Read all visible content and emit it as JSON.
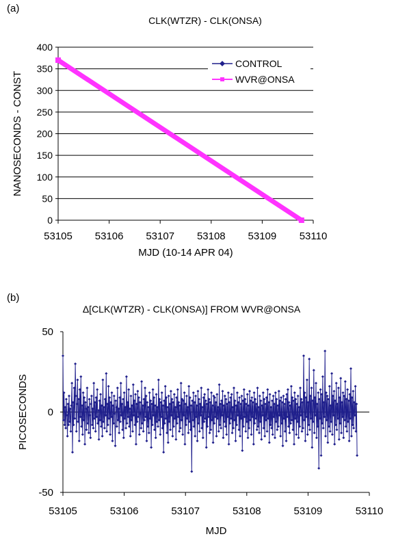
{
  "chart_data": [
    {
      "panel": "(a)",
      "type": "line",
      "title": "CLK(WTZR) - CLK(ONSA)",
      "xlabel": "MJD (10-14 APR 04)",
      "ylabel": "NANOSECONDS - CONST",
      "xlim": [
        53105,
        53110
      ],
      "ylim": [
        0,
        400
      ],
      "x_ticks": [
        "53105",
        "53106",
        "53107",
        "53108",
        "53109",
        "53110"
      ],
      "y_ticks": [
        "0",
        "50",
        "100",
        "150",
        "200",
        "250",
        "300",
        "350",
        "400"
      ],
      "grid": "horizontal",
      "legend_position": "top-right",
      "series": [
        {
          "name": "CONTROL",
          "color": "#1f1f8c",
          "marker": "diamond",
          "x": [
            53105.0,
            53109.77
          ],
          "y": [
            370,
            0
          ]
        },
        {
          "name": "WVR@ONSA",
          "color": "#ff33ff",
          "marker": "square",
          "x": [
            53105.0,
            53109.77
          ],
          "y": [
            370,
            0
          ]
        }
      ]
    },
    {
      "panel": "(b)",
      "type": "line",
      "title": "Δ[CLK(WTZR) - CLK(ONSA)] FROM WVR@ONSA",
      "xlabel": "MJD",
      "ylabel": "PICOSECONDS",
      "xlim": [
        53105,
        53110
      ],
      "ylim": [
        -50,
        50
      ],
      "x_ticks": [
        "53105",
        "53106",
        "53107",
        "53108",
        "53109",
        "53110"
      ],
      "y_ticks": [
        "-50",
        "0",
        "50"
      ],
      "grid": "none",
      "series": [
        {
          "color": "#1f1f8c",
          "marker": "diamond",
          "x_range": [
            53105.0,
            53109.8
          ],
          "y": [
            35,
            -5,
            12,
            -8,
            3,
            -10,
            8,
            -2,
            -15,
            5,
            -8,
            10,
            -6,
            2,
            -12,
            4,
            18,
            -25,
            6,
            -8,
            15,
            -4,
            30,
            10,
            -12,
            5,
            20,
            -6,
            8,
            -18,
            14,
            -3,
            22,
            -9,
            4,
            -14,
            12,
            -5,
            9,
            -20,
            6,
            2,
            -11,
            15,
            -7,
            3,
            -13,
            8,
            -2,
            -16,
            5,
            10,
            -8,
            2,
            -10,
            18,
            -4,
            6,
            -12,
            9,
            -3,
            14,
            -7,
            1,
            -17,
            7,
            -5,
            11,
            -9,
            4,
            -15,
            20,
            -6,
            3,
            -10,
            8,
            -2,
            24,
            -12,
            5,
            -8,
            16,
            -4,
            9,
            -14,
            6,
            -3,
            12,
            -18,
            4,
            -7,
            10,
            -1,
            -21,
            7,
            3,
            -9,
            15,
            -5,
            2,
            -13,
            9,
            -6,
            18,
            -2,
            5,
            -11,
            8,
            -16,
            12,
            -4,
            3,
            -10,
            22,
            -7,
            6,
            -3,
            14,
            -9,
            2,
            -15,
            10,
            -5,
            4,
            -12,
            17,
            -2,
            7,
            -8,
            11,
            -20,
            5,
            -6,
            13,
            -3,
            9,
            -14,
            6,
            -1,
            -10,
            19,
            -7,
            4,
            -12,
            8,
            -5,
            15,
            -3,
            10,
            -18,
            6,
            -9,
            3,
            -13,
            12,
            -4,
            7,
            -22,
            5,
            -8,
            14,
            -2,
            9,
            -11,
            4,
            -16,
            11,
            -6,
            3,
            -9,
            20,
            -5,
            8,
            -14,
            6,
            -3,
            12,
            -10,
            4,
            -25,
            7,
            -7,
            16,
            -4,
            9,
            -13,
            3,
            -19,
            10,
            -6,
            5,
            -11,
            13,
            -2,
            8,
            -15,
            6,
            -9,
            11,
            -4,
            3,
            -17,
            9,
            -7,
            14,
            -3,
            6,
            -12,
            4,
            -10,
            18,
            -5,
            8,
            -14,
            7,
            -2,
            12,
            -20,
            5,
            -8,
            10,
            -4,
            3,
            -13,
            16,
            -6,
            9,
            -11,
            4,
            -37,
            7,
            -5,
            12,
            -9,
            6,
            -15,
            10,
            -3,
            4,
            -18,
            13,
            -7,
            8,
            -12,
            5,
            -2,
            15,
            -10,
            3,
            -16,
            9,
            -6,
            11,
            -4,
            7,
            -22,
            5,
            -9,
            14,
            -3,
            8,
            -13,
            6,
            -11,
            12,
            -5,
            4,
            -19,
            10,
            -7,
            9,
            -3,
            6,
            -15,
            11,
            -4,
            3,
            -12,
            17,
            -8,
            5,
            -10,
            7,
            -2,
            13,
            -16,
            4,
            -6,
            10,
            -9,
            8,
            -14,
            5,
            -3,
            12,
            -20,
            6,
            -7,
            9,
            -4,
            11,
            -13,
            3,
            -10,
            15,
            -5,
            7,
            -18,
            4,
            -8,
            12,
            -2,
            6,
            -11,
            9,
            -15,
            5,
            -4,
            10,
            -24,
            7,
            -9,
            14,
            -3,
            8,
            -12,
            5,
            -6,
            11,
            -16,
            4,
            -10,
            13,
            -5,
            7,
            -14,
            9,
            -3,
            6,
            -20,
            12,
            -7,
            8,
            -4,
            5,
            -11,
            15,
            -9,
            3,
            -13,
            10,
            -6,
            7,
            -17,
            4,
            -2,
            12,
            -10,
            8,
            -15,
            5,
            -5,
            9,
            -12,
            14,
            -4,
            6,
            -19,
            11,
            -8,
            3,
            -10,
            7,
            -14,
            10,
            -3,
            5,
            -16,
            12,
            -6,
            8,
            -11,
            4,
            -9,
            13,
            -2,
            7,
            -15,
            9,
            -7,
            6,
            -21,
            10,
            -4,
            5,
            -12,
            8,
            -18,
            11,
            -3,
            14,
            -9,
            6,
            -13,
            4,
            -7,
            16,
            -5,
            9,
            -11,
            7,
            -20,
            12,
            -4,
            8,
            -14,
            5,
            -6,
            10,
            -16,
            3,
            -9,
            15,
            -2,
            8,
            -12,
            6,
            -10,
            35,
            -5,
            12,
            -18,
            9,
            -3,
            20,
            -14,
            6,
            -8,
            33,
            -11,
            10,
            -4,
            15,
            -22,
            7,
            -6,
            26,
            -13,
            9,
            -2,
            18,
            -16,
            5,
            -9,
            12,
            -35,
            8,
            -4,
            14,
            -27,
            11,
            -7,
            22,
            -10,
            6,
            -3,
            38,
            -15,
            12,
            -5,
            10,
            -19,
            8,
            -9,
            16,
            -12,
            4,
            -6,
            24,
            -14,
            10,
            -2,
            13,
            -20,
            7,
            -8,
            18,
            -11,
            5,
            -4,
            15,
            -17,
            9,
            -7,
            21,
            -13,
            6,
            -3,
            12,
            -16,
            10,
            -5,
            19,
            -9,
            8,
            -12,
            14,
            -6,
            7,
            -18,
            11,
            -4,
            27,
            -15,
            9,
            -8,
            13,
            -10,
            6,
            -2,
            16,
            -12,
            5,
            -27
          ]
        }
      ]
    }
  ]
}
